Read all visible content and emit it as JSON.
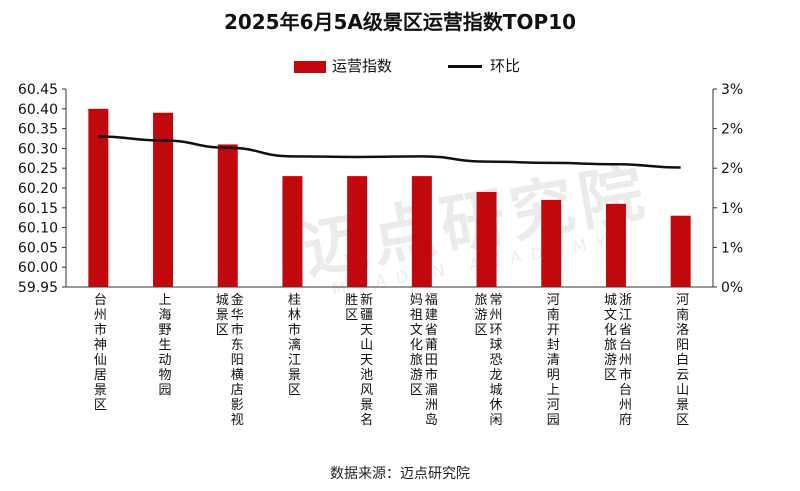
{
  "chart_data": {
    "type": "bar",
    "title": "2025年6月5A级景区运营指数TOP10",
    "categories": [
      "台州市神仙居景区",
      "上海野生动物园",
      "金华市东阳横店影视城景区",
      "桂林市漓江景区",
      "新疆天山天池风景名胜区",
      "福建省莆田市湄洲岛妈祖文化旅游区",
      "常州环球恐龙城休闲旅游区",
      "河南开封清明上河园",
      "浙江省台州市台州府城文化旅游区",
      "河南洛阳白云山景区"
    ],
    "series": [
      {
        "name": "运营指数",
        "axis": "left",
        "type": "bar",
        "color": "#c0080d",
        "values": [
          60.4,
          60.39,
          60.31,
          60.23,
          60.23,
          60.23,
          60.19,
          60.17,
          60.16,
          60.13
        ]
      },
      {
        "name": "环比",
        "axis": "right",
        "type": "line",
        "color": "#111111",
        "values": [
          2.28,
          2.22,
          2.11,
          1.98,
          1.97,
          1.98,
          1.9,
          1.88,
          1.86,
          1.81
        ]
      }
    ],
    "left_axis": {
      "ylim": [
        59.95,
        60.45
      ],
      "ticks": [
        "59.95",
        "60.00",
        "60.05",
        "60.10",
        "60.15",
        "60.20",
        "60.25",
        "60.30",
        "60.35",
        "60.40",
        "60.45"
      ]
    },
    "right_axis": {
      "ylim": [
        0,
        3
      ],
      "ticks": [
        "0%",
        "1%",
        "1%",
        "2%",
        "2%",
        "3%"
      ]
    },
    "legend": [
      "运营指数",
      "环比"
    ],
    "legend_position": "top-center",
    "source_note": "数据来源：迈点研究院",
    "watermark": "迈点研究院",
    "watermark_sub": "MEADIN ACADEMY"
  }
}
